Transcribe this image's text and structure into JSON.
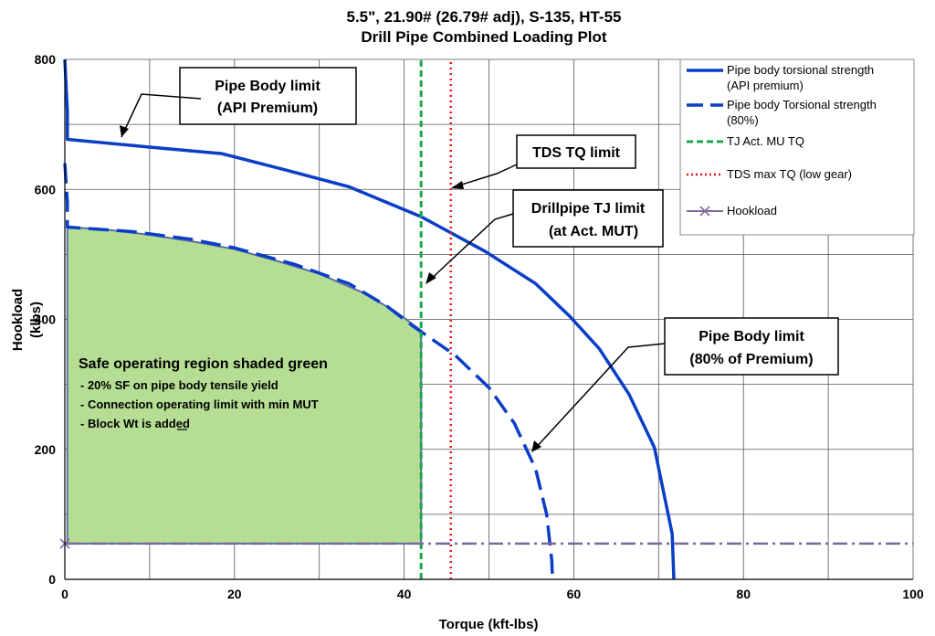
{
  "chart_data": {
    "type": "line",
    "title": "5.5\", 21.90# (26.79# adj), S-135, HT-55",
    "subtitle": "Drill Pipe Combined Loading Plot",
    "xlabel": "Torque (kft-lbs)",
    "ylabel_lines": [
      "Hookload",
      "(klbs)"
    ],
    "xlim": [
      0,
      100
    ],
    "ylim": [
      0,
      800
    ],
    "xticks": [
      "0",
      "20",
      "40",
      "60",
      "80",
      "100"
    ],
    "yticks": [
      "0",
      "200",
      "400",
      "600",
      "800"
    ],
    "grid": true,
    "legend_position": "top-right",
    "series": [
      {
        "name_lines": [
          "Pipe body torsional strength",
          "(API premium)"
        ],
        "color": "#0a3ec7",
        "style": "solid",
        "x": [
          0,
          0.3,
          0.3,
          10,
          18.5,
          26,
          33.5,
          42,
          49.5,
          55.5,
          59.5,
          63,
          66.5,
          69.5,
          71.6,
          71.8
        ],
        "y": [
          800,
          720,
          677,
          665,
          655,
          630,
          604,
          558,
          505,
          455,
          405,
          355,
          285,
          203,
          70,
          0
        ]
      },
      {
        "name_lines": [
          "Pipe body Torsional strength",
          "(80%)"
        ],
        "color": "#0a3ec7",
        "style": "dashed",
        "x": [
          0,
          0.3,
          0.3,
          8,
          15,
          20,
          27,
          33.5,
          38,
          41,
          43,
          46,
          50,
          53,
          55.5,
          56.8,
          57.4,
          57.5
        ],
        "y": [
          640,
          580,
          542,
          535,
          523,
          510,
          485,
          455,
          420,
          390,
          372,
          345,
          295,
          240,
          170,
          100,
          30,
          0
        ]
      },
      {
        "name_lines": [
          "TJ Act. MU TQ"
        ],
        "color": "#1aa84b",
        "style": "dashed",
        "x": [
          42,
          42
        ],
        "y": [
          0,
          800
        ]
      },
      {
        "name_lines": [
          "TDS max TQ (low gear)"
        ],
        "color": "#e8141e",
        "style": "dotted",
        "x": [
          45.5,
          45.5
        ],
        "y": [
          0,
          800
        ]
      },
      {
        "name_lines": [
          "Hookload"
        ],
        "color": "#7a6a9a",
        "style": "dashdot",
        "x": [
          0,
          100
        ],
        "y": [
          55,
          55
        ]
      }
    ],
    "safe_region": {
      "color": "#b5de94",
      "x": [
        0.3,
        0.3,
        5,
        10,
        15,
        20,
        25,
        30,
        35,
        39,
        42,
        42,
        0.3
      ],
      "y": [
        55,
        542,
        538,
        530,
        520,
        508,
        490,
        470,
        442,
        412,
        383,
        55,
        55
      ]
    },
    "callouts": [
      {
        "lines": [
          "Pipe  Body limit",
          "(API Premium)"
        ]
      },
      {
        "lines": [
          "TDS TQ limit"
        ]
      },
      {
        "lines": [
          "Drillpipe TJ limit",
          "(at Act. MUT)"
        ]
      },
      {
        "lines": [
          "Pipe  Body limit",
          "(80% of Premium)"
        ]
      }
    ],
    "region_note": {
      "title": "Safe operating region shaded green",
      "bullets": [
        "- 20% SF on pipe body tensile yield",
        "- Connection operating limit with min MUT",
        "- Block Wt is added"
      ]
    }
  }
}
